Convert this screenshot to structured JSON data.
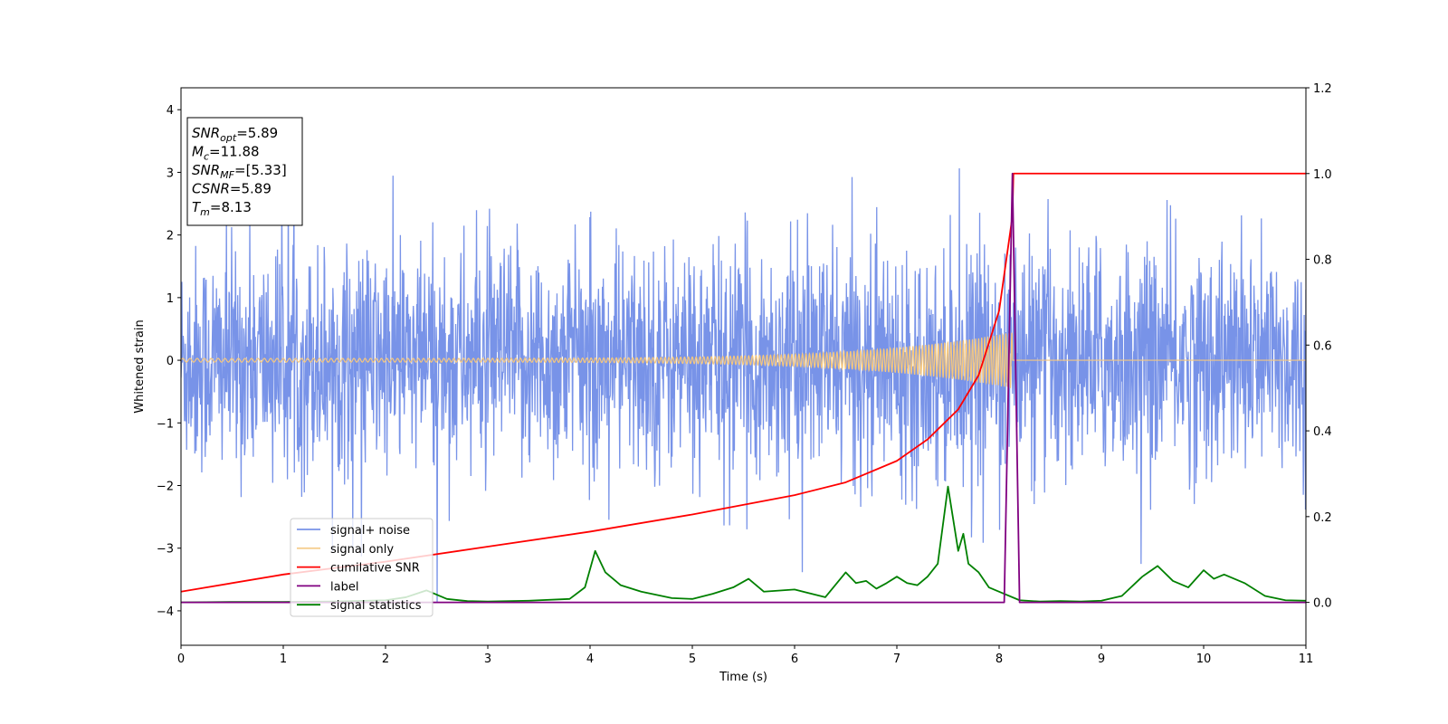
{
  "chart_data": {
    "type": "line",
    "title": "",
    "xlabel": "Time (s)",
    "ylabel": "Whitened strain",
    "y2label": "",
    "xlim": [
      0,
      11
    ],
    "ylim": [
      -4.55,
      4.35
    ],
    "y2lim": [
      -0.1,
      1.2
    ],
    "xticks": [
      "0",
      "1",
      "2",
      "3",
      "4",
      "5",
      "6",
      "7",
      "8",
      "9",
      "10",
      "11"
    ],
    "yticks": [
      "−4",
      "−3",
      "−2",
      "−1",
      "0",
      "1",
      "2",
      "3",
      "4"
    ],
    "y2ticks": [
      "0.0",
      "0.2",
      "0.4",
      "0.6",
      "0.8",
      "1.0",
      "1.2"
    ],
    "grid": false,
    "legend_position": "lower-left",
    "series": [
      {
        "name": "signal+ noise",
        "axis": "left",
        "color": "#7893e8",
        "description": "whitened noisy strain, roughly ±2 std with spikes up to ~3.9 and down to ~-4.2",
        "y_range": [
          -4.2,
          3.95
        ],
        "noise_std": 0.9
      },
      {
        "name": "signal only",
        "axis": "left",
        "color": "#f5c77e",
        "chirp_merger_time": 8.13,
        "amplitude_at_start": 0.03,
        "amplitude_at_merger": 0.45
      },
      {
        "name": "cumilative SNR",
        "axis": "right",
        "color": "#ff0000",
        "x": [
          0,
          1,
          2,
          3,
          4,
          5,
          6,
          6.5,
          7,
          7.3,
          7.6,
          7.8,
          8.0,
          8.13,
          8.14,
          11
        ],
        "y": [
          0.025,
          0.065,
          0.095,
          0.13,
          0.165,
          0.205,
          0.25,
          0.28,
          0.33,
          0.38,
          0.45,
          0.53,
          0.68,
          0.9,
          1.0,
          1.0
        ]
      },
      {
        "name": "label",
        "axis": "right",
        "color": "#800080",
        "x": [
          0,
          8.05,
          8.13,
          8.2,
          11
        ],
        "y": [
          0,
          0,
          1,
          0,
          0
        ]
      },
      {
        "name": "signal statistics",
        "axis": "right",
        "color": "#008000",
        "x": [
          0,
          0.5,
          1,
          1.5,
          2,
          2.2,
          2.4,
          2.6,
          2.8,
          3,
          3.4,
          3.8,
          3.95,
          4.05,
          4.15,
          4.3,
          4.5,
          4.8,
          5,
          5.2,
          5.4,
          5.55,
          5.7,
          6,
          6.3,
          6.5,
          6.6,
          6.7,
          6.8,
          6.9,
          7.0,
          7.1,
          7.2,
          7.3,
          7.4,
          7.5,
          7.6,
          7.65,
          7.7,
          7.8,
          7.9,
          8.0,
          8.2,
          8.4,
          8.6,
          8.8,
          9.0,
          9.2,
          9.4,
          9.55,
          9.7,
          9.85,
          10.0,
          10.1,
          10.2,
          10.4,
          10.6,
          10.8,
          11
        ],
        "y": [
          0,
          0.001,
          0.001,
          0.002,
          0.005,
          0.012,
          0.028,
          0.008,
          0.003,
          0.002,
          0.004,
          0.008,
          0.035,
          0.12,
          0.07,
          0.04,
          0.025,
          0.01,
          0.008,
          0.02,
          0.035,
          0.055,
          0.025,
          0.03,
          0.012,
          0.07,
          0.045,
          0.05,
          0.032,
          0.045,
          0.06,
          0.045,
          0.04,
          0.06,
          0.09,
          0.27,
          0.12,
          0.16,
          0.09,
          0.07,
          0.035,
          0.025,
          0.005,
          0.002,
          0.003,
          0.002,
          0.004,
          0.015,
          0.06,
          0.085,
          0.05,
          0.035,
          0.075,
          0.055,
          0.065,
          0.045,
          0.015,
          0.005,
          0.004
        ]
      }
    ],
    "annotation": {
      "lines": [
        {
          "main": "SNR",
          "sub": "opt",
          "value": "=5.89"
        },
        {
          "main": "M",
          "sub": "c",
          "value": "=11.88"
        },
        {
          "main": "SNR",
          "sub": "MF",
          "value": "=[5.33]"
        },
        {
          "main": "CSNR",
          "sub": "",
          "value": "=5.89"
        },
        {
          "main": "T",
          "sub": "m",
          "value": "=8.13"
        }
      ]
    }
  }
}
